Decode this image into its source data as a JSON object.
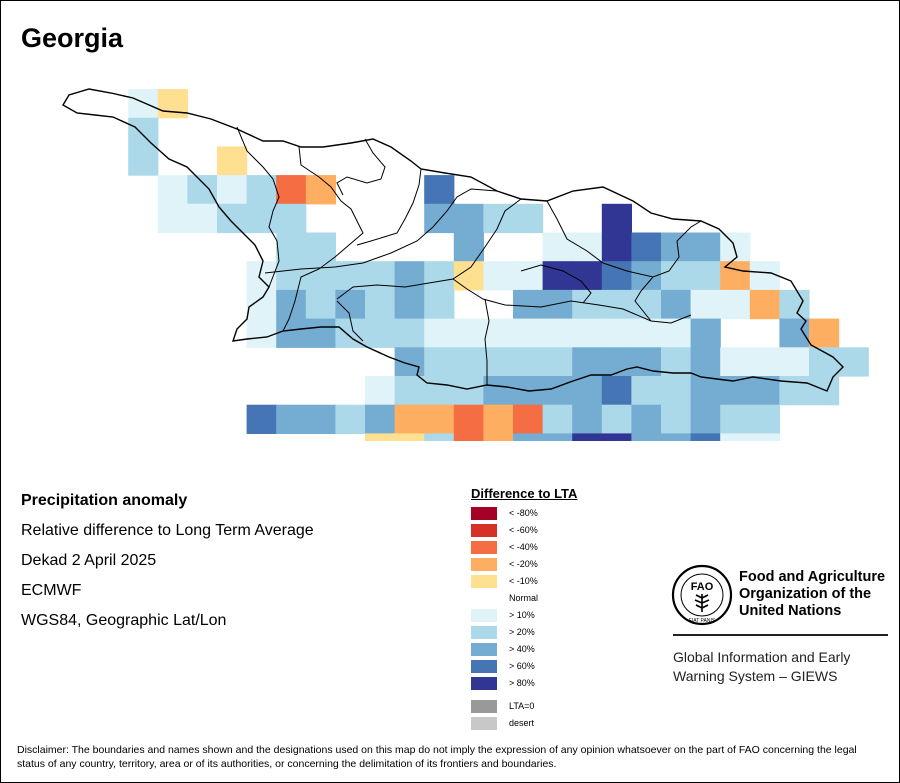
{
  "title": "Georgia",
  "info": {
    "product": "Precipitation anomaly",
    "description": "Relative difference to Long Term Average",
    "period": "Dekad 2 April 2025",
    "source": "ECMWF",
    "projection": "WGS84, Geographic Lat/Lon"
  },
  "legend": {
    "title": "Difference to LTA",
    "classes": [
      {
        "label": "< -80%",
        "color": "#a50026"
      },
      {
        "label": "< -60%",
        "color": "#d73027"
      },
      {
        "label": "< -40%",
        "color": "#f46d43"
      },
      {
        "label": "< -20%",
        "color": "#fdae61"
      },
      {
        "label": "< -10%",
        "color": "#fee090"
      },
      {
        "label": "Normal",
        "color": "#ffffff"
      },
      {
        "label": "> 10%",
        "color": "#e0f3f8"
      },
      {
        "label": "> 20%",
        "color": "#abd9e9"
      },
      {
        "label": "> 40%",
        "color": "#74add1"
      },
      {
        "label": "> 60%",
        "color": "#4575b4"
      },
      {
        "label": "> 80%",
        "color": "#313695"
      }
    ],
    "extra": [
      {
        "label": "LTA=0",
        "color": "#999999"
      },
      {
        "label": "desert",
        "color": "#c8c8c8"
      }
    ]
  },
  "organization": {
    "name_lines": [
      "Food and Agriculture",
      "Organization of the",
      "United Nations"
    ],
    "logo_text": "FAO",
    "logo_motto": "FIAT PANIS",
    "system_lines": [
      "Global Information and Early",
      "Warning System – GIEWS"
    ]
  },
  "disclaimer": "Disclaimer: The boundaries and names shown and the designations used on this map do not imply the expression of any opinion whatsoever on the part of FAO concerning the legal status of any country, territory, area or of its authorities, or concerning the delimitation of its frontiers and boundaries.",
  "grid": {
    "palette": {
      "3": "#f46d43",
      "4": "#fdae61",
      "5": "#fee090",
      "6": "#ffffff",
      "7": "#e0f3f8",
      "8": "#abd9e9",
      "9": "#74add1",
      "10": "#4575b4",
      "11": "#313695"
    },
    "rows": [
      "667566666666666666666666666",
      "668666666666666666666666666",
      "668665666666666666666666666",
      "666787834666106666666666666",
      "666778886666998866116666666",
      "666666688666696677111099766",
      "666666788889857711111098847",
      "666666798989866998889774866",
      "666666799888777777777966946",
      "666666666669888889998977788",
      "666666666678889999108899988",
      "66666610998944343898989886666",
      "666666666655834991111991077",
      "666666666666655479911111109666",
      "666666666666666665778911119986",
      "666666666666666666666669977776"
    ]
  }
}
